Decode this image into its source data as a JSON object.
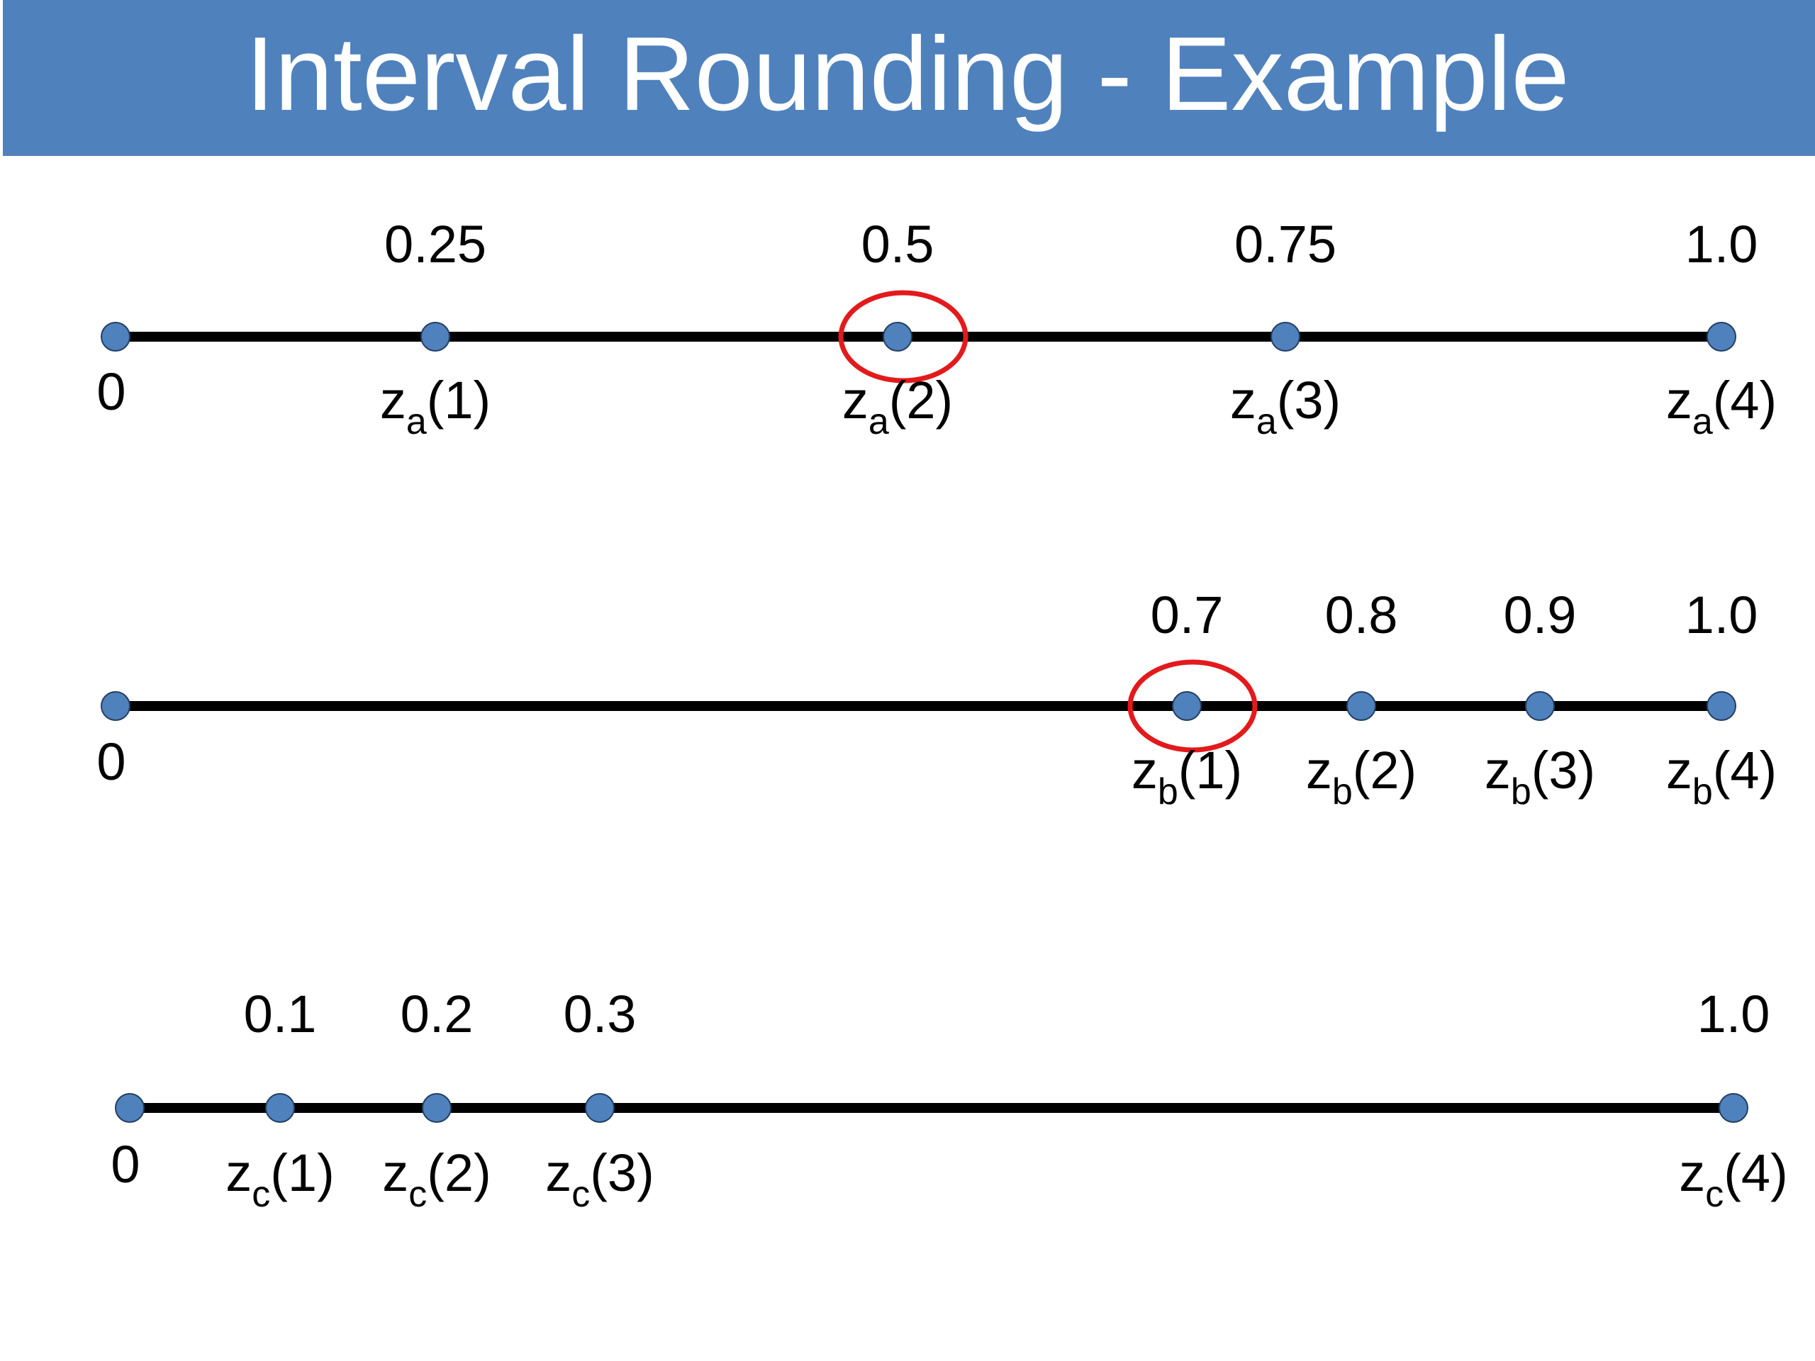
{
  "title": "Interval Rounding - Example",
  "lines": [
    {
      "origin": "0",
      "points": [
        {
          "value": "0.25",
          "label": {
            "base": "z",
            "sub": "a",
            "suffix": "(1)"
          }
        },
        {
          "value": "0.5",
          "label": {
            "base": "z",
            "sub": "a",
            "suffix": "(2)"
          }
        },
        {
          "value": "0.75",
          "label": {
            "base": "z",
            "sub": "a",
            "suffix": "(3)"
          }
        },
        {
          "value": "1.0",
          "label": {
            "base": "z",
            "sub": "a",
            "suffix": "(4)"
          }
        }
      ]
    },
    {
      "origin": "0",
      "points": [
        {
          "value": "0.7",
          "label": {
            "base": "z",
            "sub": "b",
            "suffix": "(1)"
          }
        },
        {
          "value": "0.8",
          "label": {
            "base": "z",
            "sub": "b",
            "suffix": "(2)"
          }
        },
        {
          "value": "0.9",
          "label": {
            "base": "z",
            "sub": "b",
            "suffix": "(3)"
          }
        },
        {
          "value": "1.0",
          "label": {
            "base": "z",
            "sub": "b",
            "suffix": "(4)"
          }
        }
      ]
    },
    {
      "origin": "0",
      "points": [
        {
          "value": "0.1",
          "label": {
            "base": "z",
            "sub": "c",
            "suffix": "(1)"
          }
        },
        {
          "value": "0.2",
          "label": {
            "base": "z",
            "sub": "c",
            "suffix": "(2)"
          }
        },
        {
          "value": "0.3",
          "label": {
            "base": "z",
            "sub": "c",
            "suffix": "(3)"
          }
        },
        {
          "value": "1.0",
          "label": {
            "base": "z",
            "sub": "c",
            "suffix": "(4)"
          }
        }
      ]
    }
  ]
}
